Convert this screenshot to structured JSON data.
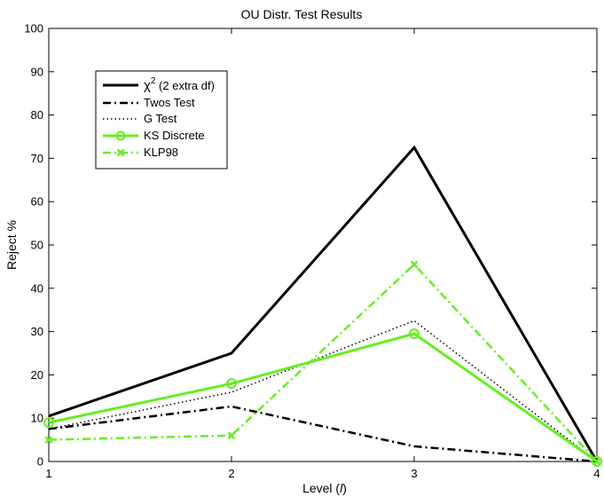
{
  "chart_data": {
    "type": "line",
    "title": "OU Distr. Test Results",
    "xlabel_main": "Level (",
    "xlabel_var": "l",
    "xlabel_end": ")",
    "ylabel": "Reject %",
    "xlim": [
      1,
      4
    ],
    "ylim": [
      0,
      100
    ],
    "x": [
      1,
      2,
      3,
      4
    ],
    "xticks": [
      "1",
      "2",
      "3",
      "4"
    ],
    "yticks": [
      "0",
      "10",
      "20",
      "30",
      "40",
      "50",
      "60",
      "70",
      "80",
      "90",
      "100"
    ],
    "grid": false,
    "legend_position": "top-left",
    "series": [
      {
        "id": "chi2",
        "name_main": "χ",
        "name_sup": "2",
        "name_rest": " (2 extra df)",
        "values": [
          10.5,
          25,
          72.5,
          0
        ],
        "color": "#000000",
        "style": "solid",
        "marker": "none"
      },
      {
        "id": "twos",
        "name": "Twos Test",
        "values": [
          7.5,
          12.7,
          3.5,
          0
        ],
        "color": "#000000",
        "style": "dashdot",
        "marker": "none"
      },
      {
        "id": "gtest",
        "name": "G Test",
        "values": [
          7.5,
          16,
          32.5,
          0
        ],
        "color": "#000000",
        "style": "dotted",
        "marker": "none"
      },
      {
        "id": "ks",
        "name": "KS Discrete",
        "values": [
          9,
          18,
          29.5,
          0
        ],
        "color": "#66ee22",
        "style": "solid",
        "marker": "circle"
      },
      {
        "id": "klp",
        "name": "KLP98",
        "values": [
          5,
          6,
          45.5,
          0
        ],
        "color": "#66ee22",
        "style": "dashdot",
        "marker": "x"
      }
    ]
  }
}
